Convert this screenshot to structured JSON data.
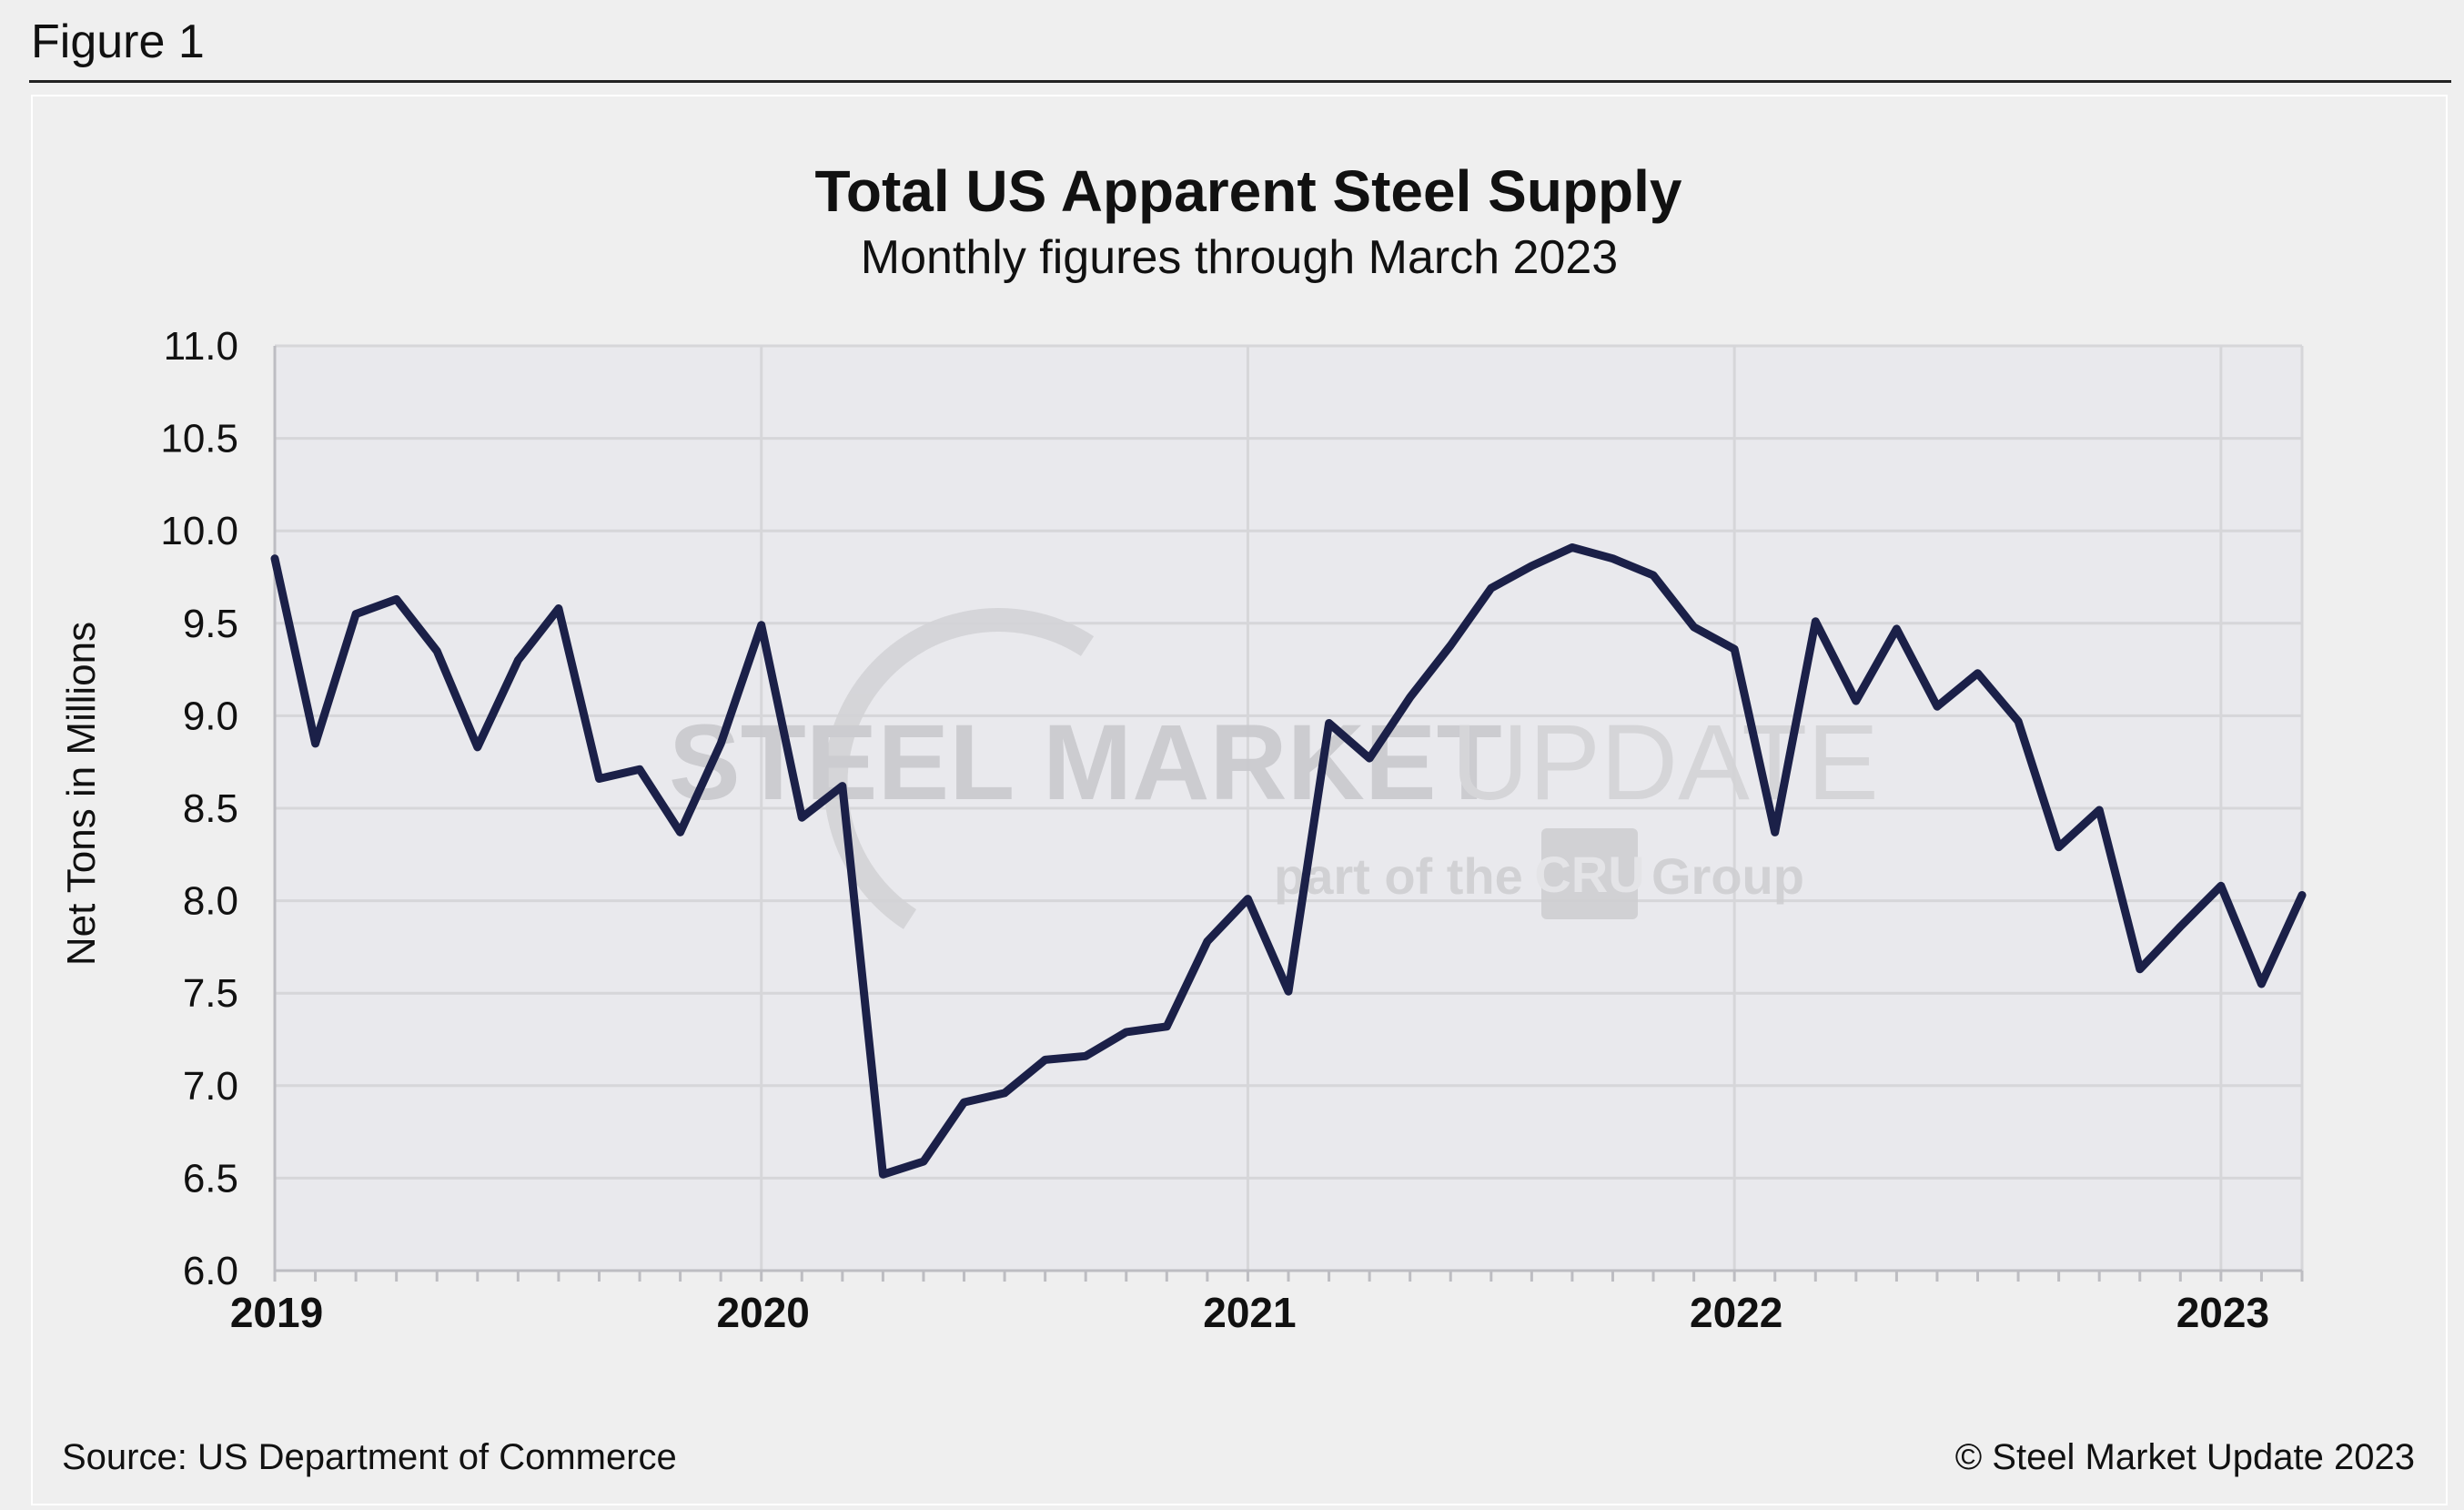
{
  "figure_label": "Figure 1",
  "watermark": {
    "brand_bold": "STEEL MARKET",
    "brand_light": "UPDATE",
    "tagline_start": "part of the",
    "tagline_logo": "CRU",
    "tagline_end": "Group"
  },
  "chart_data": {
    "type": "line",
    "title": "Total US Apparent Steel Supply",
    "subtitle": "Monthly figures through March 2023",
    "ylabel": "Net Tons in Millions",
    "xlabel": "",
    "ylim": [
      6.0,
      11.0
    ],
    "yticks": [
      "11.0",
      "10.5",
      "10.0",
      "9.5",
      "9.0",
      "8.5",
      "8.0",
      "7.5",
      "7.0",
      "6.5",
      "6.0"
    ],
    "xticks": [
      "2019",
      "2020",
      "2021",
      "2022",
      "2023"
    ],
    "x_start": "Jan 2019",
    "x_end": "Mar 2023",
    "grid": true,
    "line_color": "#1b2048",
    "series": [
      {
        "name": "Total US Apparent Steel Supply",
        "values": [
          9.85,
          8.85,
          9.55,
          9.63,
          9.35,
          8.83,
          9.3,
          9.58,
          8.66,
          8.71,
          8.37,
          8.85,
          9.49,
          8.45,
          8.62,
          6.52,
          6.59,
          6.91,
          6.96,
          7.14,
          7.16,
          7.29,
          7.32,
          7.78,
          8.01,
          7.51,
          8.96,
          8.77,
          9.1,
          9.38,
          9.69,
          9.81,
          9.91,
          9.85,
          9.76,
          9.48,
          9.36,
          8.37,
          9.51,
          9.08,
          9.47,
          9.05,
          9.23,
          8.97,
          8.29,
          8.49,
          7.63,
          7.86,
          8.08,
          7.55,
          8.03
        ]
      }
    ]
  },
  "footer": {
    "source": "Source: US Department of Commerce",
    "copyright": "© Steel Market Update 2023"
  }
}
